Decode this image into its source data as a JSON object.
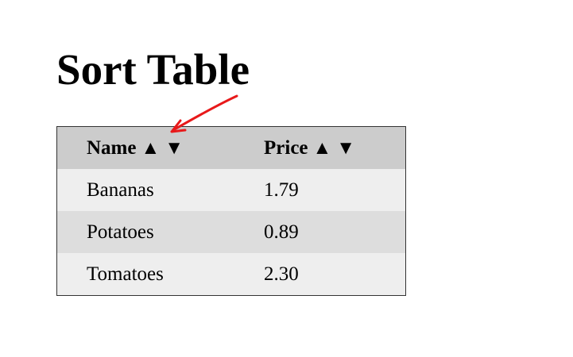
{
  "page": {
    "title": "Sort Table"
  },
  "table": {
    "headers": [
      {
        "label": "Name",
        "sort_asc": "▲",
        "sort_desc": "▼"
      },
      {
        "label": "Price",
        "sort_asc": "▲",
        "sort_desc": "▼"
      }
    ],
    "rows": [
      {
        "name": "Bananas",
        "price": "1.79"
      },
      {
        "name": "Potatoes",
        "price": "0.89"
      },
      {
        "name": "Tomatoes",
        "price": "2.30"
      }
    ]
  },
  "annotation": {
    "arrow_color": "#e8191a"
  },
  "colors": {
    "header_bg": "#cccccc",
    "row_odd_bg": "#eeeeee",
    "row_even_bg": "#dddddd",
    "border": "#333333"
  }
}
